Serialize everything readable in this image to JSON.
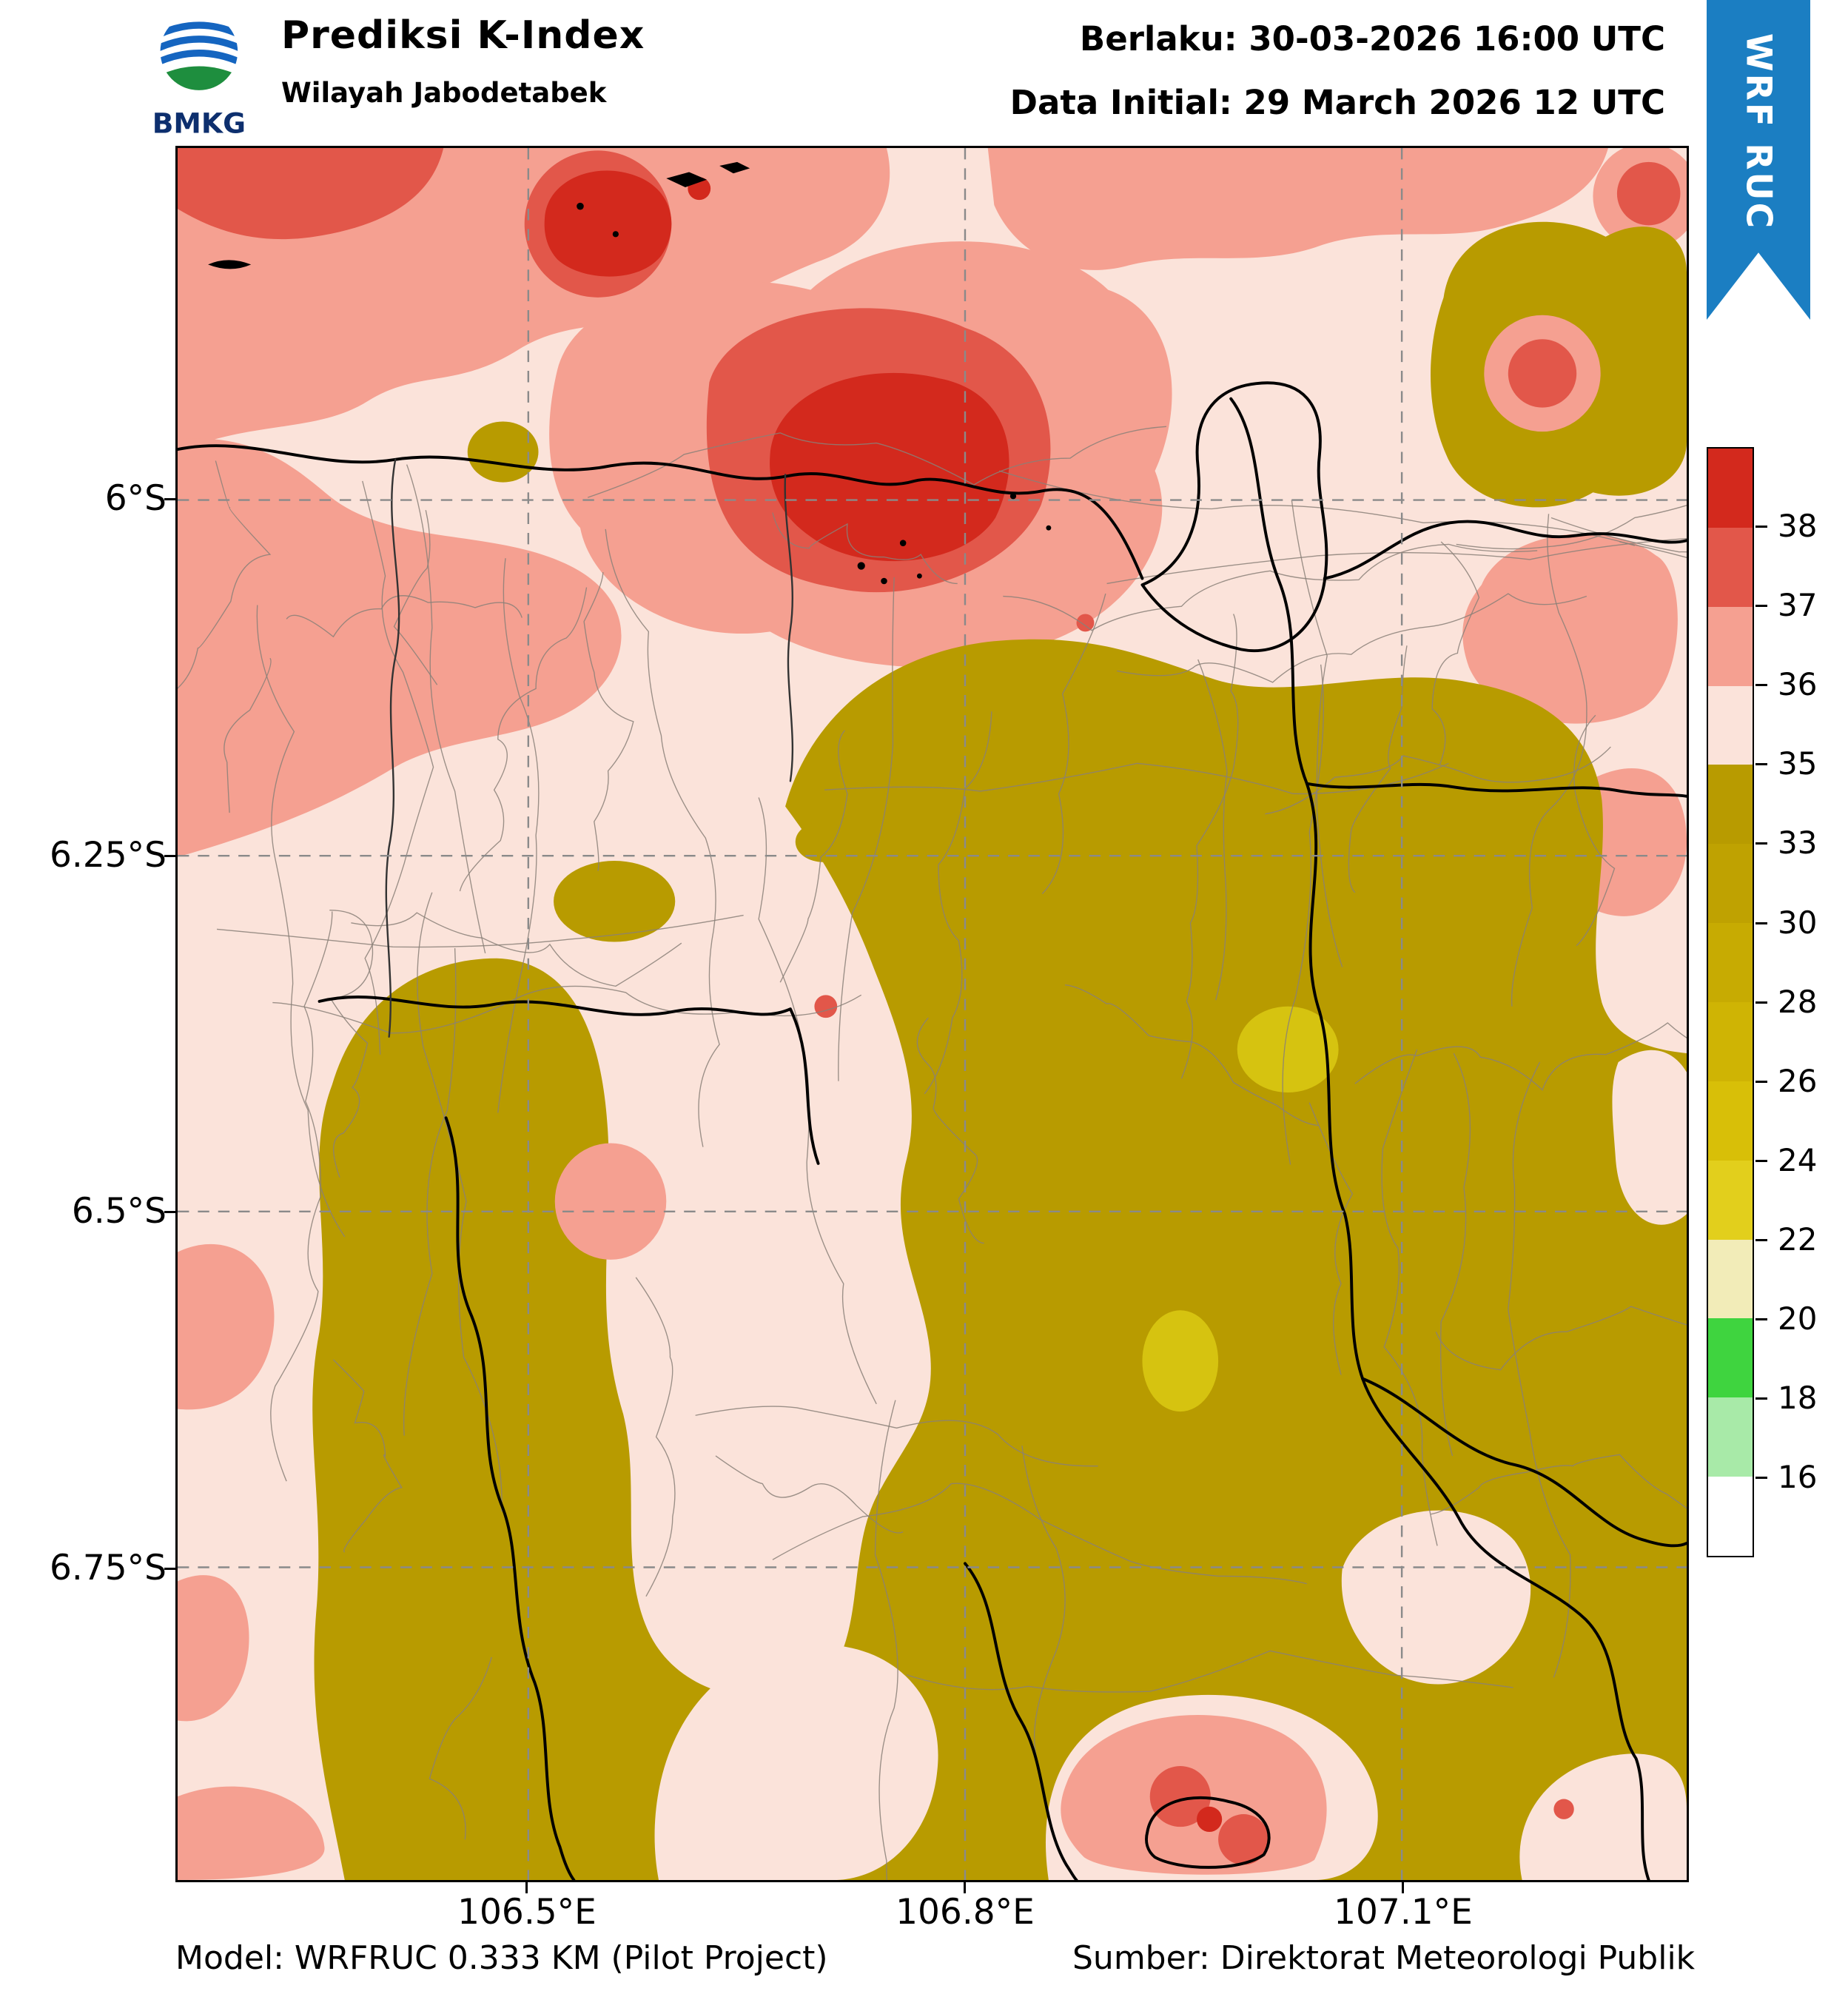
{
  "header": {
    "logo_text": "BMKG",
    "logo_colors": {
      "blue": "#1565c0",
      "green": "#1e8e3e"
    },
    "title": "Prediksi K-Index",
    "subtitle": "Wilayah Jabodetabek",
    "valid": "Berlaku: 30-03-2026 16:00 UTC",
    "initial": "Data Initial: 29 March 2026 12 UTC",
    "ribbon_label": "WRF RUC",
    "ribbon_color": "#1b7ec2"
  },
  "footer": {
    "model": "Model: WRFRUC 0.333 KM (Pilot Project)",
    "source": "Sumber: Direktorat Meteorologi Publik"
  },
  "chart_data": {
    "type": "heatmap",
    "title": "Prediksi K-Index",
    "region": "Wilayah Jabodetabek",
    "valid_time": "30-03-2026 16:00 UTC",
    "initial_time": "29 March 2026 12 UTC",
    "model": "WRFRUC 0.333 KM (Pilot Project)",
    "source": "Direktorat Meteorologi Publik",
    "x_axis": {
      "ticks": [
        "106.5°E",
        "106.8°E",
        "107.1°E"
      ]
    },
    "y_axis": {
      "ticks": [
        "6°S",
        "6.25°S",
        "6.5°S",
        "6.75°S"
      ]
    },
    "colorbar": {
      "levels_top_to_bottom": [
        "38",
        "37",
        "36",
        "35",
        "33",
        "30",
        "28",
        "26",
        "24",
        "22",
        "20",
        "18",
        "16"
      ],
      "segment_colors_top_to_bottom": [
        "#d3291d",
        "#e2574a",
        "#f5a091",
        "#fbe3da",
        "#b89b00",
        "#bfa201",
        "#c7ab02",
        "#cfb404",
        "#d8bf08",
        "#e2cf1c",
        "#f2ecb8",
        "#3fd43f",
        "#a8eaa8",
        "#ffffff"
      ],
      "position": "right"
    },
    "map_palette": {
      "k_33_35": "#b89b00",
      "k_30_33": "#d6c310",
      "k_35_36": "#fbe3da",
      "k_36_37": "#f5a091",
      "k_37_38": "#e2574a",
      "k_gt_38": "#d3291d"
    },
    "observed_values": {
      "north_sea_band": "36 to >38",
      "north_band_cores": ">38",
      "central_west": "35-36",
      "south_and_east": "33-35",
      "local_pockets_in_olive": "30-33"
    },
    "grid": "dashed",
    "summary": "Predicted K-Index 33-35 (olive) dominates southern and eastern Jabodetabek; 35-36 (pale pink) covers central and western areas; a 36-38 salmon/red band with >38 cores stretches along the northern coast and Java Sea."
  }
}
